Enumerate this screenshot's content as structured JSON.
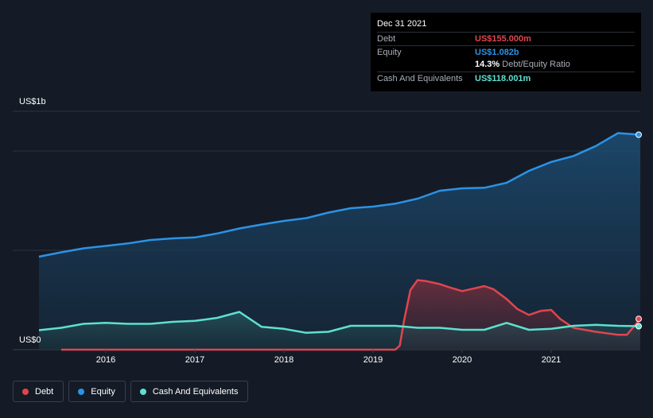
{
  "chart_data": {
    "type": "area",
    "x_ticks": [
      "2016",
      "2017",
      "2018",
      "2019",
      "2020",
      "2021"
    ],
    "y_labels": {
      "top": "US$1b",
      "bottom": "US$0"
    },
    "ylim": [
      0,
      1.2
    ],
    "y_unit": "US$ billions",
    "grid": true,
    "series": [
      {
        "name": "Debt",
        "color": "#e0454e",
        "x": [
          2015.5,
          2016.0,
          2016.5,
          2017.0,
          2017.5,
          2018.0,
          2018.5,
          2019.0,
          2019.25,
          2019.3,
          2019.35,
          2019.42,
          2019.5,
          2019.6,
          2019.75,
          2019.85,
          2020.0,
          2020.1,
          2020.25,
          2020.35,
          2020.5,
          2020.62,
          2020.75,
          2020.88,
          2021.0,
          2021.1,
          2021.25,
          2021.5,
          2021.75,
          2021.85,
          2022.0
        ],
        "values": [
          0.0,
          0.0,
          0.0,
          0.0,
          0.0,
          0.0,
          0.0,
          0.0,
          0.0,
          0.02,
          0.15,
          0.3,
          0.35,
          0.345,
          0.33,
          0.315,
          0.295,
          0.305,
          0.32,
          0.305,
          0.255,
          0.205,
          0.175,
          0.195,
          0.2,
          0.155,
          0.11,
          0.09,
          0.075,
          0.075,
          0.155
        ]
      },
      {
        "name": "Equity",
        "color": "#2b93e6",
        "x": [
          2015.25,
          2015.5,
          2015.75,
          2016.0,
          2016.25,
          2016.5,
          2016.75,
          2017.0,
          2017.25,
          2017.5,
          2017.75,
          2018.0,
          2018.25,
          2018.5,
          2018.75,
          2019.0,
          2019.25,
          2019.5,
          2019.75,
          2020.0,
          2020.25,
          2020.5,
          2020.75,
          2021.0,
          2021.25,
          2021.5,
          2021.75,
          2022.0
        ],
        "values": [
          0.468,
          0.49,
          0.51,
          0.522,
          0.535,
          0.552,
          0.56,
          0.565,
          0.585,
          0.61,
          0.63,
          0.648,
          0.662,
          0.69,
          0.712,
          0.72,
          0.735,
          0.76,
          0.8,
          0.812,
          0.815,
          0.84,
          0.9,
          0.945,
          0.975,
          1.025,
          1.09,
          1.082
        ]
      },
      {
        "name": "Cash And Equivalents",
        "color": "#5ee0d0",
        "x": [
          2015.25,
          2015.5,
          2015.75,
          2016.0,
          2016.25,
          2016.5,
          2016.75,
          2017.0,
          2017.25,
          2017.5,
          2017.75,
          2018.0,
          2018.25,
          2018.5,
          2018.75,
          2019.0,
          2019.25,
          2019.5,
          2019.75,
          2020.0,
          2020.25,
          2020.5,
          2020.75,
          2021.0,
          2021.25,
          2021.5,
          2021.75,
          2022.0
        ],
        "values": [
          0.098,
          0.11,
          0.13,
          0.135,
          0.13,
          0.13,
          0.14,
          0.145,
          0.16,
          0.19,
          0.115,
          0.105,
          0.085,
          0.09,
          0.12,
          0.12,
          0.12,
          0.11,
          0.11,
          0.1,
          0.1,
          0.135,
          0.1,
          0.105,
          0.12,
          0.125,
          0.12,
          0.118
        ]
      }
    ],
    "tooltip": {
      "date": "Dec 31 2021",
      "rows": [
        {
          "label": "Debt",
          "value": "US$155.000m",
          "color": "#e0454e"
        },
        {
          "label": "Equity",
          "value": "US$1.082b",
          "color": "#2b93e6"
        },
        {
          "label": "Cash And Equivalents",
          "value": "US$118.001m",
          "color": "#5ee0d0"
        }
      ],
      "ratio_value": "14.3%",
      "ratio_label": "Debt/Equity Ratio"
    }
  },
  "legend": [
    {
      "label": "Debt",
      "color": "#e0454e"
    },
    {
      "label": "Equity",
      "color": "#2b93e6"
    },
    {
      "label": "Cash And Equivalents",
      "color": "#5ee0d0"
    }
  ]
}
